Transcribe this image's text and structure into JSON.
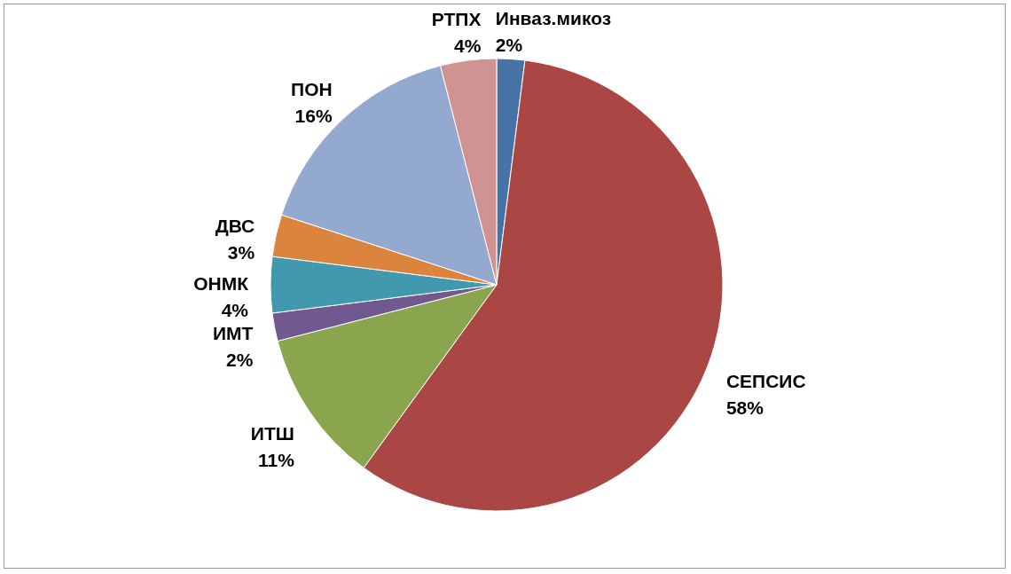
{
  "chart_data": {
    "type": "pie",
    "categories": [
      "Инваз.микоз",
      "СЕПСИС",
      "ИТШ",
      "ИМТ",
      "ОНМК",
      "ДВС",
      "ПОН",
      "РТПХ"
    ],
    "values": [
      2,
      58,
      11,
      2,
      4,
      3,
      16,
      4
    ],
    "value_labels": [
      "2%",
      "58%",
      "11%",
      "2%",
      "4%",
      "3%",
      "16%",
      "4%"
    ],
    "colors": [
      "#4572a7",
      "#aa4643",
      "#89a54e",
      "#71588f",
      "#4198af",
      "#db843d",
      "#93a9cf",
      "#d19392"
    ],
    "legend": false
  }
}
